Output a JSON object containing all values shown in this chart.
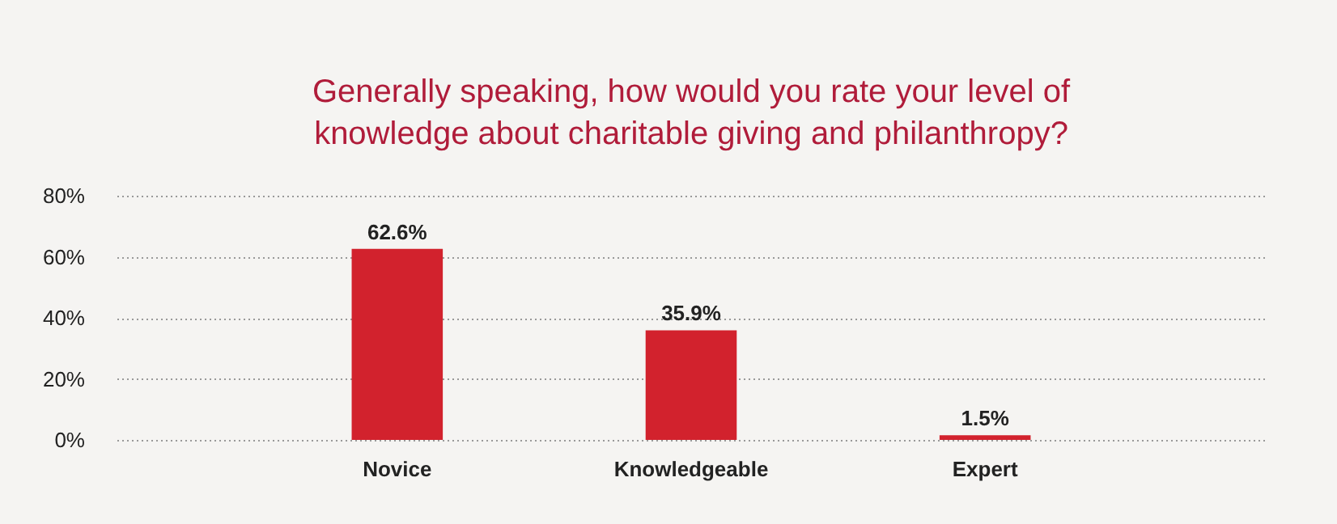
{
  "chart_data": {
    "type": "bar",
    "title": "Generally speaking, how would you rate your level of\nknowledge about charitable giving and philanthropy?",
    "categories": [
      "Novice",
      "Knowledgeable",
      "Expert"
    ],
    "values": [
      62.6,
      35.9,
      1.5
    ],
    "value_labels": [
      "62.6%",
      "35.9%",
      "1.5%"
    ],
    "color": "#d2222d",
    "ylim": [
      0,
      80
    ],
    "yticks": [
      {
        "value": 0,
        "label": "0%"
      },
      {
        "value": 20,
        "label": "20%"
      },
      {
        "value": 40,
        "label": "40%"
      },
      {
        "value": 60,
        "label": "60%"
      },
      {
        "value": 80,
        "label": "80%"
      }
    ],
    "grid": "y"
  }
}
